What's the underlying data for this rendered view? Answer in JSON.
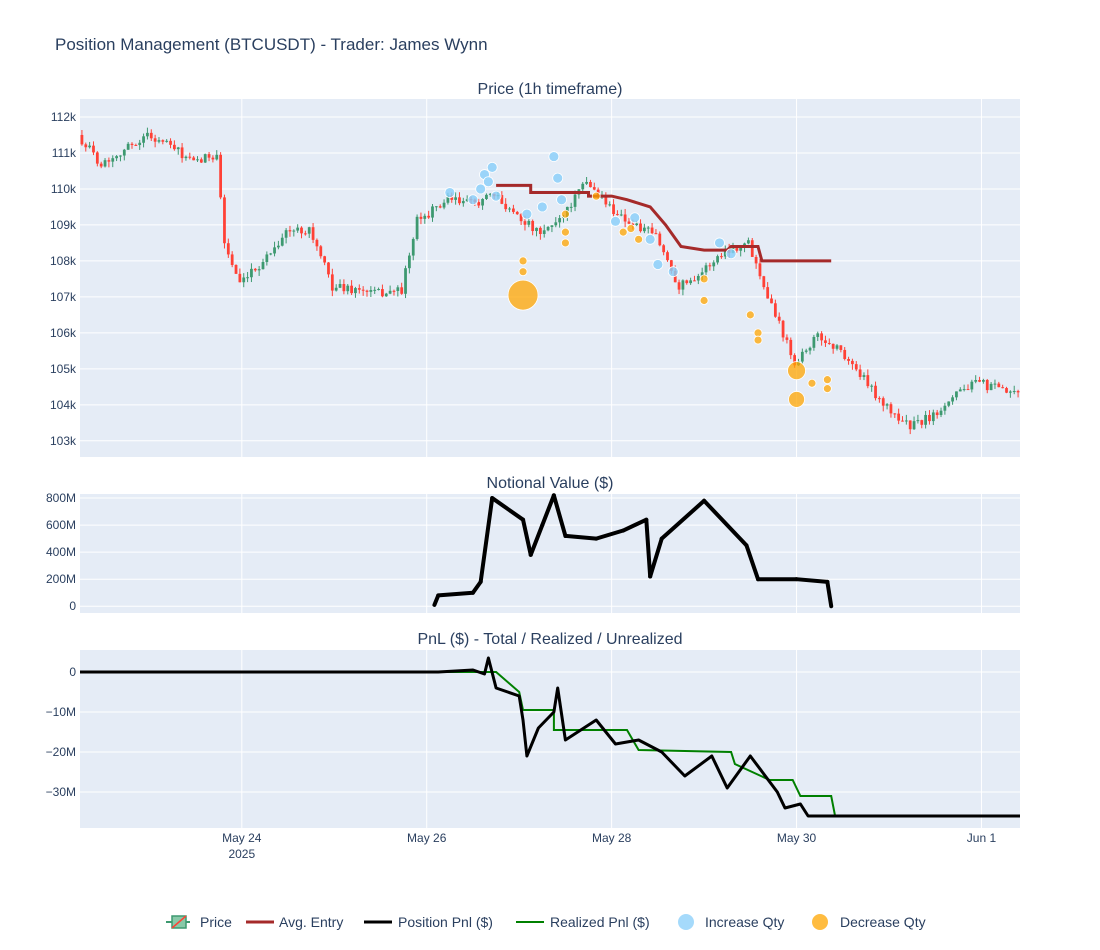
{
  "title": "Position Management (BTCUSDT) - Trader: James Wynn",
  "colors": {
    "plot_bg": "#E5ECF6",
    "up": "#3D9970",
    "down": "#FF4136",
    "avg_entry": "#A52A2A",
    "position_pnl": "#000000",
    "realized_pnl": "#008000",
    "increase": "#87CEFA",
    "decrease": "#FFA500"
  },
  "x_axis": {
    "range": [
      "2025-05-22 06:00",
      "2025-06-01 10:00"
    ],
    "ticks": [
      {
        "date": "2025-05-24 00:00",
        "label": "May 24",
        "sublabel": "2025"
      },
      {
        "date": "2025-05-26 00:00",
        "label": "May 26",
        "sublabel": ""
      },
      {
        "date": "2025-05-28 00:00",
        "label": "May 28",
        "sublabel": ""
      },
      {
        "date": "2025-05-30 00:00",
        "label": "May 30",
        "sublabel": ""
      },
      {
        "date": "2025-06-01 00:00",
        "label": "Jun 1",
        "sublabel": ""
      }
    ]
  },
  "panels": {
    "price": {
      "title": "Price (1h timeframe)",
      "ylim": [
        102550,
        112500
      ],
      "ticks": [
        {
          "v": 112000,
          "label": "112k"
        },
        {
          "v": 111000,
          "label": "111k"
        },
        {
          "v": 110000,
          "label": "110k"
        },
        {
          "v": 109000,
          "label": "109k"
        },
        {
          "v": 108000,
          "label": "108k"
        },
        {
          "v": 107000,
          "label": "107k"
        },
        {
          "v": 106000,
          "label": "106k"
        },
        {
          "v": 105000,
          "label": "105k"
        },
        {
          "v": 104000,
          "label": "104k"
        },
        {
          "v": 103000,
          "label": "103k"
        }
      ]
    },
    "notional": {
      "title": "Notional Value ($)",
      "ylim": [
        -50,
        830
      ],
      "ticks": [
        {
          "v": 800,
          "label": "800M"
        },
        {
          "v": 600,
          "label": "600M"
        },
        {
          "v": 400,
          "label": "400M"
        },
        {
          "v": 200,
          "label": "200M"
        },
        {
          "v": 0,
          "label": "0"
        }
      ]
    },
    "pnl": {
      "title": "PnL ($) - Total / Realized / Unrealized",
      "ylim": [
        -39,
        5.5
      ],
      "ticks": [
        {
          "v": 0,
          "label": "0"
        },
        {
          "v": -10,
          "label": "−10M"
        },
        {
          "v": -20,
          "label": "−20M"
        },
        {
          "v": -30,
          "label": "−30M"
        }
      ]
    }
  },
  "legend": [
    {
      "key": "price",
      "label": "Price"
    },
    {
      "key": "avg",
      "label": "Avg. Entry"
    },
    {
      "key": "pos",
      "label": "Position Pnl ($)"
    },
    {
      "key": "real",
      "label": "Realized Pnl ($)"
    },
    {
      "key": "inc",
      "label": "Increase Qty"
    },
    {
      "key": "dec",
      "label": "Decrease Qty"
    }
  ],
  "chart_data": {
    "type": "line",
    "price_anchors": [
      [
        "2025-05-22 06:00",
        111500
      ],
      [
        "2025-05-22 12:00",
        110700
      ],
      [
        "2025-05-22 18:00",
        111100
      ],
      [
        "2025-05-23 00:00",
        111500
      ],
      [
        "2025-05-23 06:00",
        111200
      ],
      [
        "2025-05-23 12:00",
        110700
      ],
      [
        "2025-05-23 18:00",
        111000
      ],
      [
        "2025-05-23 20:00",
        108500
      ],
      [
        "2025-05-24 00:00",
        107300
      ],
      [
        "2025-05-24 06:00",
        108000
      ],
      [
        "2025-05-24 12:00",
        108800
      ],
      [
        "2025-05-24 18:00",
        108900
      ],
      [
        "2025-05-25 00:00",
        107300
      ],
      [
        "2025-05-25 12:00",
        107100
      ],
      [
        "2025-05-25 18:00",
        107200
      ],
      [
        "2025-05-25 22:00",
        109100
      ],
      [
        "2025-05-26 06:00",
        109700
      ],
      [
        "2025-05-26 12:00",
        109600
      ],
      [
        "2025-05-26 18:00",
        109800
      ],
      [
        "2025-05-27 00:00",
        109300
      ],
      [
        "2025-05-27 06:00",
        108700
      ],
      [
        "2025-05-27 12:00",
        109300
      ],
      [
        "2025-05-27 18:00",
        110200
      ],
      [
        "2025-05-28 00:00",
        109500
      ],
      [
        "2025-05-28 06:00",
        109000
      ],
      [
        "2025-05-28 12:00",
        108700
      ],
      [
        "2025-05-28 18:00",
        107300
      ],
      [
        "2025-05-29 00:00",
        107700
      ],
      [
        "2025-05-29 06:00",
        108300
      ],
      [
        "2025-05-29 12:00",
        108500
      ],
      [
        "2025-05-29 18:00",
        106800
      ],
      [
        "2025-05-30 00:00",
        105200
      ],
      [
        "2025-05-30 06:00",
        105900
      ],
      [
        "2025-05-30 12:00",
        105500
      ],
      [
        "2025-05-30 18:00",
        104700
      ],
      [
        "2025-05-31 00:00",
        103900
      ],
      [
        "2025-05-31 06:00",
        103400
      ],
      [
        "2025-05-31 12:00",
        103700
      ],
      [
        "2025-05-31 18:00",
        104400
      ],
      [
        "2025-06-01 00:00",
        104600
      ],
      [
        "2025-06-01 10:00",
        104250
      ]
    ],
    "avg_entry": [
      [
        "2025-05-26 18:00",
        110100
      ],
      [
        "2025-05-27 03:00",
        110100
      ],
      [
        "2025-05-27 03:00",
        109900
      ],
      [
        "2025-05-27 18:00",
        109900
      ],
      [
        "2025-05-27 18:00",
        109800
      ],
      [
        "2025-05-28 00:00",
        109800
      ],
      [
        "2025-05-28 04:00",
        109700
      ],
      [
        "2025-05-28 10:00",
        109500
      ],
      [
        "2025-05-28 14:00",
        109000
      ],
      [
        "2025-05-28 18:00",
        108400
      ],
      [
        "2025-05-29 00:00",
        108300
      ],
      [
        "2025-05-29 06:00",
        108300
      ],
      [
        "2025-05-29 07:00",
        108400
      ],
      [
        "2025-05-29 14:00",
        108400
      ],
      [
        "2025-05-29 15:00",
        108000
      ],
      [
        "2025-05-30 09:00",
        108000
      ]
    ],
    "notional_M": [
      [
        "2025-05-26 02:00",
        10
      ],
      [
        "2025-05-26 03:00",
        80
      ],
      [
        "2025-05-26 12:00",
        100
      ],
      [
        "2025-05-26 14:00",
        180
      ],
      [
        "2025-05-26 17:00",
        800
      ],
      [
        "2025-05-27 01:00",
        640
      ],
      [
        "2025-05-27 03:00",
        380
      ],
      [
        "2025-05-27 06:00",
        600
      ],
      [
        "2025-05-27 09:00",
        820
      ],
      [
        "2025-05-27 12:00",
        520
      ],
      [
        "2025-05-27 20:00",
        500
      ],
      [
        "2025-05-28 03:00",
        560
      ],
      [
        "2025-05-28 09:00",
        640
      ],
      [
        "2025-05-28 10:00",
        220
      ],
      [
        "2025-05-28 13:00",
        500
      ],
      [
        "2025-05-29 00:00",
        780
      ],
      [
        "2025-05-29 11:00",
        450
      ],
      [
        "2025-05-29 14:00",
        200
      ],
      [
        "2025-05-30 00:00",
        200
      ],
      [
        "2025-05-30 08:00",
        180
      ],
      [
        "2025-05-30 09:00",
        0
      ]
    ],
    "position_pnl_M": [
      [
        "2025-05-22 06:00",
        0
      ],
      [
        "2025-05-26 03:00",
        0
      ],
      [
        "2025-05-26 12:00",
        0.5
      ],
      [
        "2025-05-26 15:00",
        -0.5
      ],
      [
        "2025-05-26 16:00",
        3.5
      ],
      [
        "2025-05-26 18:00",
        -4
      ],
      [
        "2025-05-27 00:00",
        -6
      ],
      [
        "2025-05-27 01:00",
        -12
      ],
      [
        "2025-05-27 02:00",
        -21
      ],
      [
        "2025-05-27 05:00",
        -14
      ],
      [
        "2025-05-27 09:00",
        -10
      ],
      [
        "2025-05-27 10:00",
        -4
      ],
      [
        "2025-05-27 12:00",
        -17
      ],
      [
        "2025-05-27 20:00",
        -12
      ],
      [
        "2025-05-28 01:00",
        -18
      ],
      [
        "2025-05-28 07:00",
        -17
      ],
      [
        "2025-05-28 13:00",
        -20
      ],
      [
        "2025-05-28 19:00",
        -26
      ],
      [
        "2025-05-29 02:00",
        -21
      ],
      [
        "2025-05-29 06:00",
        -29
      ],
      [
        "2025-05-29 12:00",
        -21
      ],
      [
        "2025-05-29 19:00",
        -30
      ],
      [
        "2025-05-29 21:00",
        -34
      ],
      [
        "2025-05-30 01:00",
        -33
      ],
      [
        "2025-05-30 03:00",
        -36
      ],
      [
        "2025-05-30 09:00",
        -36
      ],
      [
        "2025-06-01 10:00",
        -36
      ]
    ],
    "realized_pnl_M": [
      [
        "2025-05-22 06:00",
        0
      ],
      [
        "2025-05-26 18:00",
        0
      ],
      [
        "2025-05-27 00:00",
        -5
      ],
      [
        "2025-05-27 01:00",
        -9.5
      ],
      [
        "2025-05-27 09:00",
        -9.5
      ],
      [
        "2025-05-27 09:00",
        -14.5
      ],
      [
        "2025-05-28 04:00",
        -14.5
      ],
      [
        "2025-05-28 07:00",
        -19.5
      ],
      [
        "2025-05-29 07:00",
        -20
      ],
      [
        "2025-05-29 08:00",
        -23
      ],
      [
        "2025-05-29 17:00",
        -27
      ],
      [
        "2025-05-29 23:00",
        -27
      ],
      [
        "2025-05-30 01:00",
        -31
      ],
      [
        "2025-05-30 09:00",
        -31
      ],
      [
        "2025-05-30 10:00",
        -36
      ],
      [
        "2025-06-01 10:00",
        -36
      ]
    ],
    "increase_qty": [
      [
        "2025-05-26 06:00",
        109900,
        5
      ],
      [
        "2025-05-26 12:00",
        109700,
        5
      ],
      [
        "2025-05-26 14:00",
        110000,
        5
      ],
      [
        "2025-05-26 15:00",
        110400,
        5
      ],
      [
        "2025-05-26 16:00",
        110200,
        5
      ],
      [
        "2025-05-26 17:00",
        110600,
        5
      ],
      [
        "2025-05-26 18:00",
        109800,
        5
      ],
      [
        "2025-05-27 02:00",
        109300,
        5
      ],
      [
        "2025-05-27 06:00",
        109500,
        5
      ],
      [
        "2025-05-27 09:00",
        110900,
        5
      ],
      [
        "2025-05-27 10:00",
        110300,
        5
      ],
      [
        "2025-05-27 11:00",
        109700,
        5
      ],
      [
        "2025-05-28 01:00",
        109100,
        5
      ],
      [
        "2025-05-28 06:00",
        109200,
        5
      ],
      [
        "2025-05-28 10:00",
        108600,
        5
      ],
      [
        "2025-05-28 12:00",
        107900,
        5
      ],
      [
        "2025-05-28 16:00",
        107700,
        5
      ],
      [
        "2025-05-29 04:00",
        108500,
        5
      ],
      [
        "2025-05-29 07:00",
        108200,
        5
      ]
    ],
    "decrease_qty": [
      [
        "2025-05-27 01:00",
        107050,
        15
      ],
      [
        "2025-05-27 01:00",
        107700,
        4
      ],
      [
        "2025-05-27 01:00",
        108000,
        4
      ],
      [
        "2025-05-27 12:00",
        108500,
        4
      ],
      [
        "2025-05-27 12:00",
        108800,
        4
      ],
      [
        "2025-05-27 12:00",
        109300,
        4
      ],
      [
        "2025-05-27 20:00",
        109800,
        4
      ],
      [
        "2025-05-28 03:00",
        108800,
        4
      ],
      [
        "2025-05-28 05:00",
        108900,
        4
      ],
      [
        "2025-05-28 07:00",
        108600,
        4
      ],
      [
        "2025-05-29 00:00",
        107500,
        4
      ],
      [
        "2025-05-29 00:00",
        106900,
        4
      ],
      [
        "2025-05-29 12:00",
        106500,
        4
      ],
      [
        "2025-05-29 14:00",
        106000,
        4
      ],
      [
        "2025-05-29 14:00",
        105800,
        4
      ],
      [
        "2025-05-30 00:00",
        104950,
        9
      ],
      [
        "2025-05-30 00:00",
        104150,
        8
      ],
      [
        "2025-05-30 04:00",
        104600,
        4
      ],
      [
        "2025-05-30 08:00",
        104700,
        4
      ],
      [
        "2025-05-30 08:00",
        104450,
        4
      ]
    ]
  }
}
